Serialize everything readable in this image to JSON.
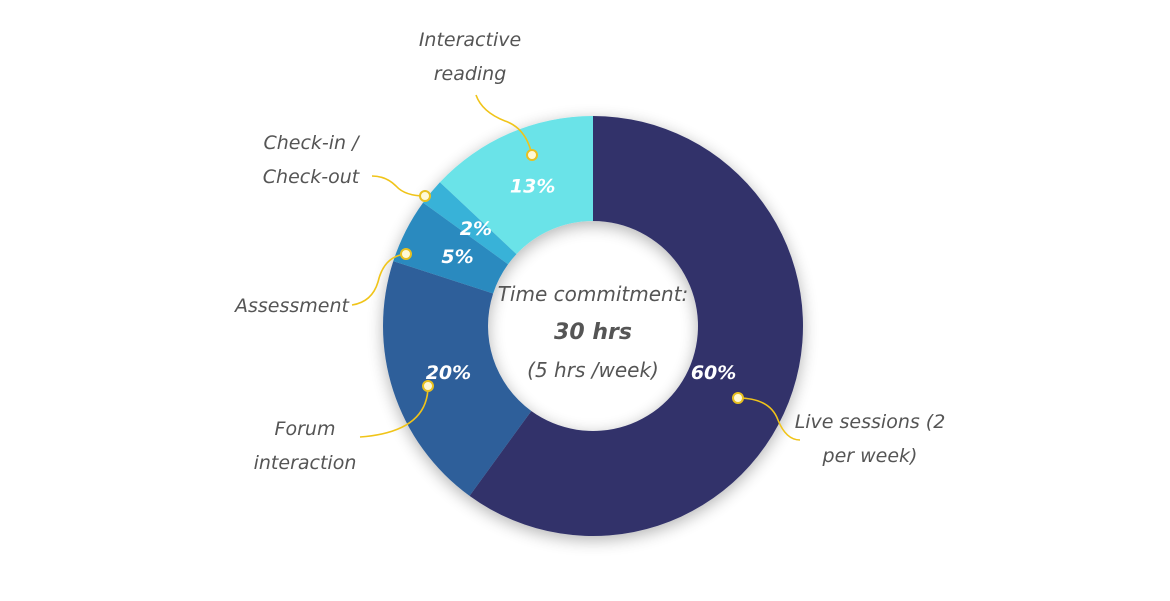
{
  "chart_data": {
    "type": "donut",
    "categories": [
      "Live sessions (2 per week)",
      "Forum interaction",
      "Assessment",
      "Check-in / Check-out",
      "Interactive reading"
    ],
    "values": [
      60,
      20,
      5,
      2,
      13
    ],
    "value_labels": [
      "60%",
      "20%",
      "5%",
      "2%",
      "13%"
    ],
    "colors": [
      "#31336b",
      "#2e5f9a",
      "#2b8abf",
      "#39b2d8",
      "#6ae3e8"
    ],
    "center_text": [
      "Time commitment:",
      "30 hrs",
      "(5 hrs /week)"
    ]
  }
}
